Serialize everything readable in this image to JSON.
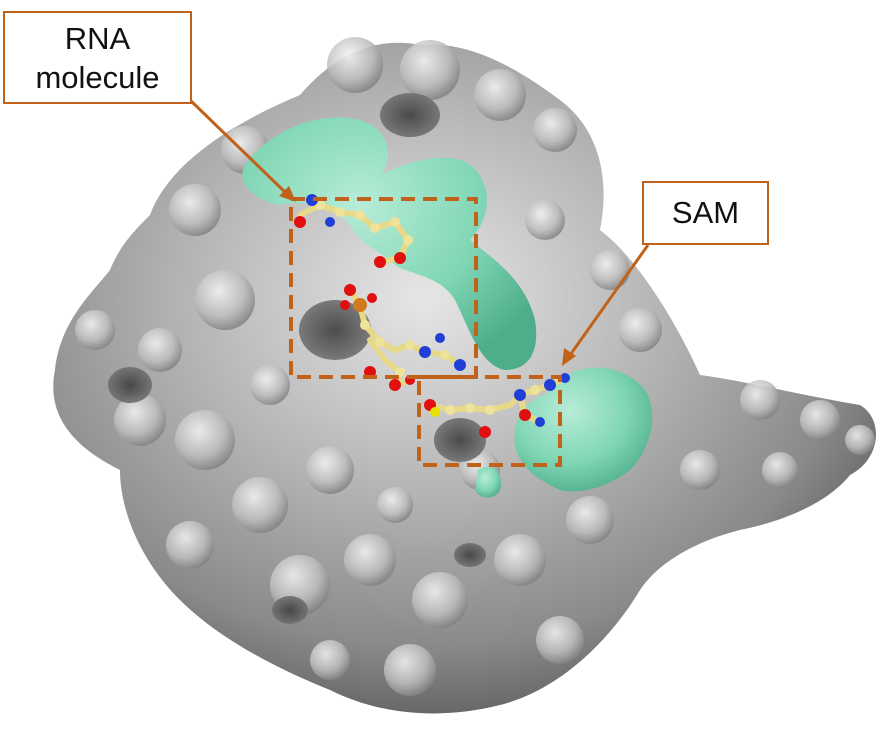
{
  "labels": {
    "rna": "RNA\nmolecule",
    "sam": "SAM"
  },
  "colors": {
    "surface": "#9a9a9a",
    "surface_light": "#d9d9d9",
    "surface_dark": "#5b5b5b",
    "binding_site": "#7fd6b4",
    "annotation": "#c0621a",
    "ligand_carbon": "#efe39a",
    "ligand_oxygen": "#e01010",
    "ligand_nitrogen": "#1f3fd6",
    "ligand_phosphorus": "#d07a20"
  },
  "icons": {
    "surface": "protein-surface",
    "ligand": "ball-and-stick"
  }
}
